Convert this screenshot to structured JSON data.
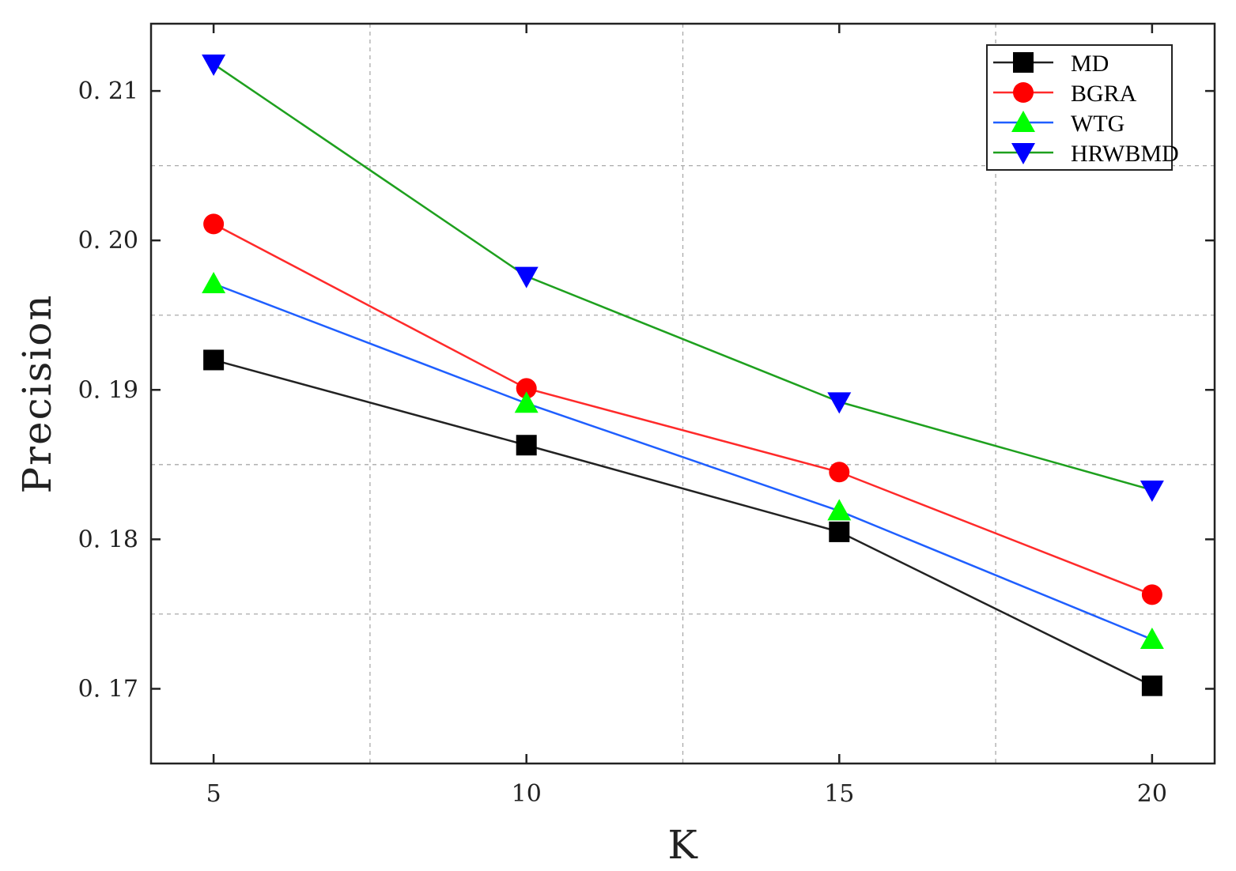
{
  "chart_data": {
    "type": "line",
    "title": "",
    "xlabel": "K",
    "ylabel": "Precision",
    "x": [
      5,
      10,
      15,
      20
    ],
    "xticks": [
      5,
      10,
      15,
      20
    ],
    "xtick_labels": [
      "5",
      "10",
      "15",
      "20"
    ],
    "yticks": [
      0.17,
      0.18,
      0.19,
      0.2,
      0.21
    ],
    "ytick_labels": [
      "0. 17",
      "0. 18",
      "0. 19",
      "0. 20",
      "0. 21"
    ],
    "xlim": [
      4.0,
      21.0
    ],
    "ylim": [
      0.165,
      0.2145
    ],
    "grid": "dashed",
    "legend_position": "top-right",
    "series": [
      {
        "name": "MD",
        "values": [
          0.192,
          0.1863,
          0.1805,
          0.1702
        ],
        "line_color": "#222222",
        "marker_color": "#000000",
        "marker": "square"
      },
      {
        "name": "BGRA",
        "values": [
          0.2011,
          0.1901,
          0.1845,
          0.1763
        ],
        "line_color": "#ff2a2a",
        "marker_color": "#ff0000",
        "marker": "circle"
      },
      {
        "name": "WTG",
        "values": [
          0.1971,
          0.1891,
          0.1819,
          0.1733
        ],
        "line_color": "#1f5fff",
        "marker_color": "#00ff00",
        "marker": "triangle-up"
      },
      {
        "name": "HRWBMD",
        "values": [
          0.2118,
          0.1976,
          0.1892,
          0.1833
        ],
        "line_color": "#1ea01e",
        "marker_color": "#0000ff",
        "marker": "triangle-down"
      }
    ]
  }
}
